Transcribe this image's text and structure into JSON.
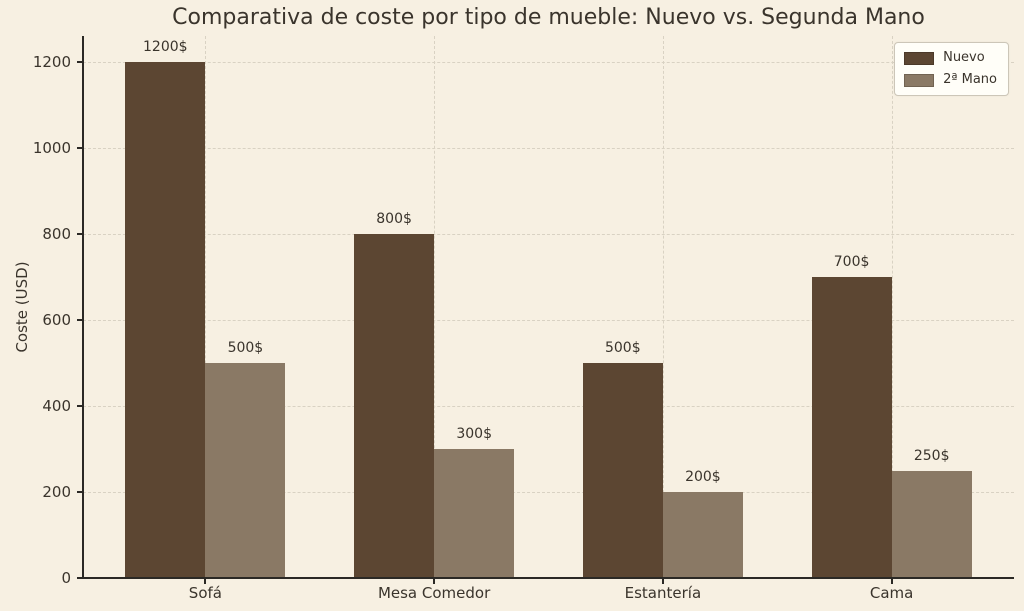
{
  "colors": {
    "background": "#F7F0E2",
    "text": "#3A342C",
    "axis": "#2B2925",
    "grid": "#D9D2C3",
    "legend_bg": "#FFFEF8",
    "legend_border": "#CCC6B8",
    "bar_new": "#5C4632",
    "bar_used": "#8A7965"
  },
  "chart_data": {
    "type": "bar",
    "title": "Comparativa de coste por tipo de mueble: Nuevo vs. Segunda Mano",
    "xlabel": "",
    "ylabel": "Coste (USD)",
    "categories": [
      "Sofá",
      "Mesa Comedor",
      "Estantería",
      "Cama"
    ],
    "series": [
      {
        "name": "Nuevo",
        "color": "#5C4632",
        "values": [
          1200,
          800,
          500,
          700
        ],
        "labels": [
          "1200$",
          "800$",
          "500$",
          "700$"
        ]
      },
      {
        "name": "2ª Mano",
        "color": "#8A7965",
        "values": [
          500,
          300,
          200,
          250
        ],
        "labels": [
          "500$",
          "300$",
          "200$",
          "250$"
        ]
      }
    ],
    "yticks": [
      0,
      200,
      400,
      600,
      800,
      1000,
      1200
    ],
    "ytick_labels": [
      "0",
      "200",
      "400",
      "600",
      "800",
      "1000",
      "1200"
    ],
    "ylim": [
      0,
      1260
    ],
    "grid": true,
    "grid_style": "dashed",
    "legend_position": "upper right",
    "value_suffix": "$"
  }
}
